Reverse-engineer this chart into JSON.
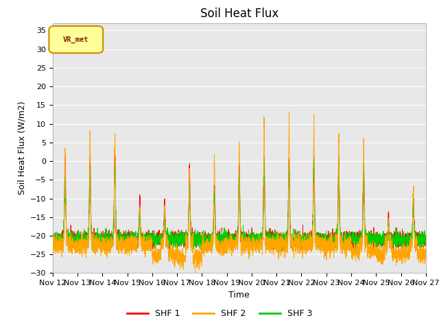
{
  "title": "Soil Heat Flux",
  "ylabel": "Soil Heat Flux (W/m2)",
  "xlabel": "Time",
  "ylim": [
    -30,
    37
  ],
  "yticks": [
    -30,
    -25,
    -20,
    -15,
    -10,
    -5,
    0,
    5,
    10,
    15,
    20,
    25,
    30,
    35
  ],
  "xtick_labels": [
    "Nov 12",
    "Nov 13",
    "Nov 14",
    "Nov 15",
    "Nov 16",
    "Nov 17",
    "Nov 18",
    "Nov 19",
    "Nov 20",
    "Nov 21",
    "Nov 22",
    "Nov 23",
    "Nov 24",
    "Nov 25",
    "Nov 26",
    "Nov 27"
  ],
  "colors": {
    "SHF 1": "#ff0000",
    "SHF 2": "#ffa500",
    "SHF 3": "#00cc00"
  },
  "legend_labels": [
    "SHF 1",
    "SHF 2",
    "SHF 3"
  ],
  "vr_met_label": "VR_met",
  "vr_met_box_color": "#ffff99",
  "vr_met_border_color": "#cc8800",
  "plot_bg_color": "#e8e8e8",
  "grid_color": "#ffffff",
  "title_fontsize": 12,
  "axis_fontsize": 9,
  "tick_fontsize": 8,
  "n_points": 4320,
  "num_days": 15
}
